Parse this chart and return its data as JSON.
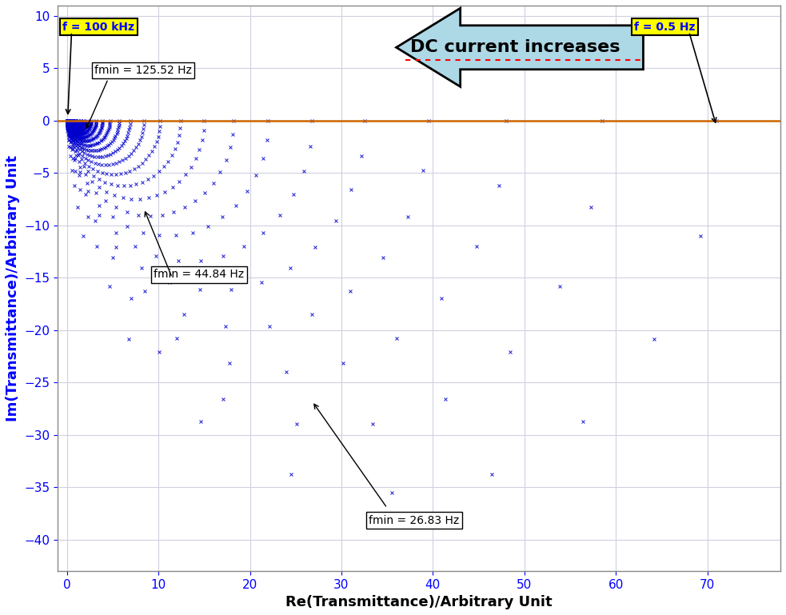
{
  "xlabel": "Re(Transmittance)/Arbitrary Unit",
  "ylabel": "Im(Transmittance)/Arbitrary Unit",
  "xlim": [
    -1,
    78
  ],
  "ylim": [
    -43,
    11
  ],
  "xticks": [
    0,
    10,
    20,
    30,
    40,
    50,
    60,
    70
  ],
  "yticks": [
    -40,
    -35,
    -30,
    -25,
    -20,
    -15,
    -10,
    -5,
    0,
    5,
    10
  ],
  "bg_color": "#ffffff",
  "plot_bg_color": "#ffffff",
  "grid_color": "#d0d0e0",
  "data_color": "#0000cc",
  "hline_color": "#cc6600",
  "arrow_fill": "#add8e6",
  "arrow_edge": "#000000",
  "arrow_text": "DC current increases",
  "label_f100k": "f = 100 kHz",
  "label_f05": "f = 0.5 Hz",
  "label_fmin1": "fmin = 125.52 Hz",
  "label_fmin2": "fmin = 44.84 Hz",
  "label_fmin3": "fmin = 26.83 Hz",
  "curves": [
    {
      "diameter": 0.15,
      "npts": 120
    },
    {
      "diameter": 0.22,
      "npts": 115
    },
    {
      "diameter": 0.3,
      "npts": 110
    },
    {
      "diameter": 0.4,
      "npts": 105
    },
    {
      "diameter": 0.52,
      "npts": 100
    },
    {
      "diameter": 0.66,
      "npts": 95
    },
    {
      "diameter": 0.82,
      "npts": 90
    },
    {
      "diameter": 1.0,
      "npts": 85
    },
    {
      "diameter": 1.22,
      "npts": 80
    },
    {
      "diameter": 1.48,
      "npts": 75
    },
    {
      "diameter": 1.8,
      "npts": 70
    },
    {
      "diameter": 2.18,
      "npts": 65
    },
    {
      "diameter": 2.64,
      "npts": 60
    },
    {
      "diameter": 3.2,
      "npts": 55
    },
    {
      "diameter": 3.88,
      "npts": 50
    },
    {
      "diameter": 4.7,
      "npts": 46
    },
    {
      "diameter": 5.7,
      "npts": 42
    },
    {
      "diameter": 6.9,
      "npts": 38
    },
    {
      "diameter": 8.4,
      "npts": 35
    },
    {
      "diameter": 10.2,
      "npts": 32
    },
    {
      "diameter": 12.4,
      "npts": 29
    },
    {
      "diameter": 15.0,
      "npts": 26
    },
    {
      "diameter": 18.2,
      "npts": 23
    },
    {
      "diameter": 22.0,
      "npts": 20
    },
    {
      "diameter": 26.8,
      "npts": 18
    },
    {
      "diameter": 32.5,
      "npts": 16
    },
    {
      "diameter": 39.5,
      "npts": 14
    },
    {
      "diameter": 48.0,
      "npts": 13
    },
    {
      "diameter": 58.5,
      "npts": 12
    },
    {
      "diameter": 71.0,
      "npts": 11
    }
  ]
}
